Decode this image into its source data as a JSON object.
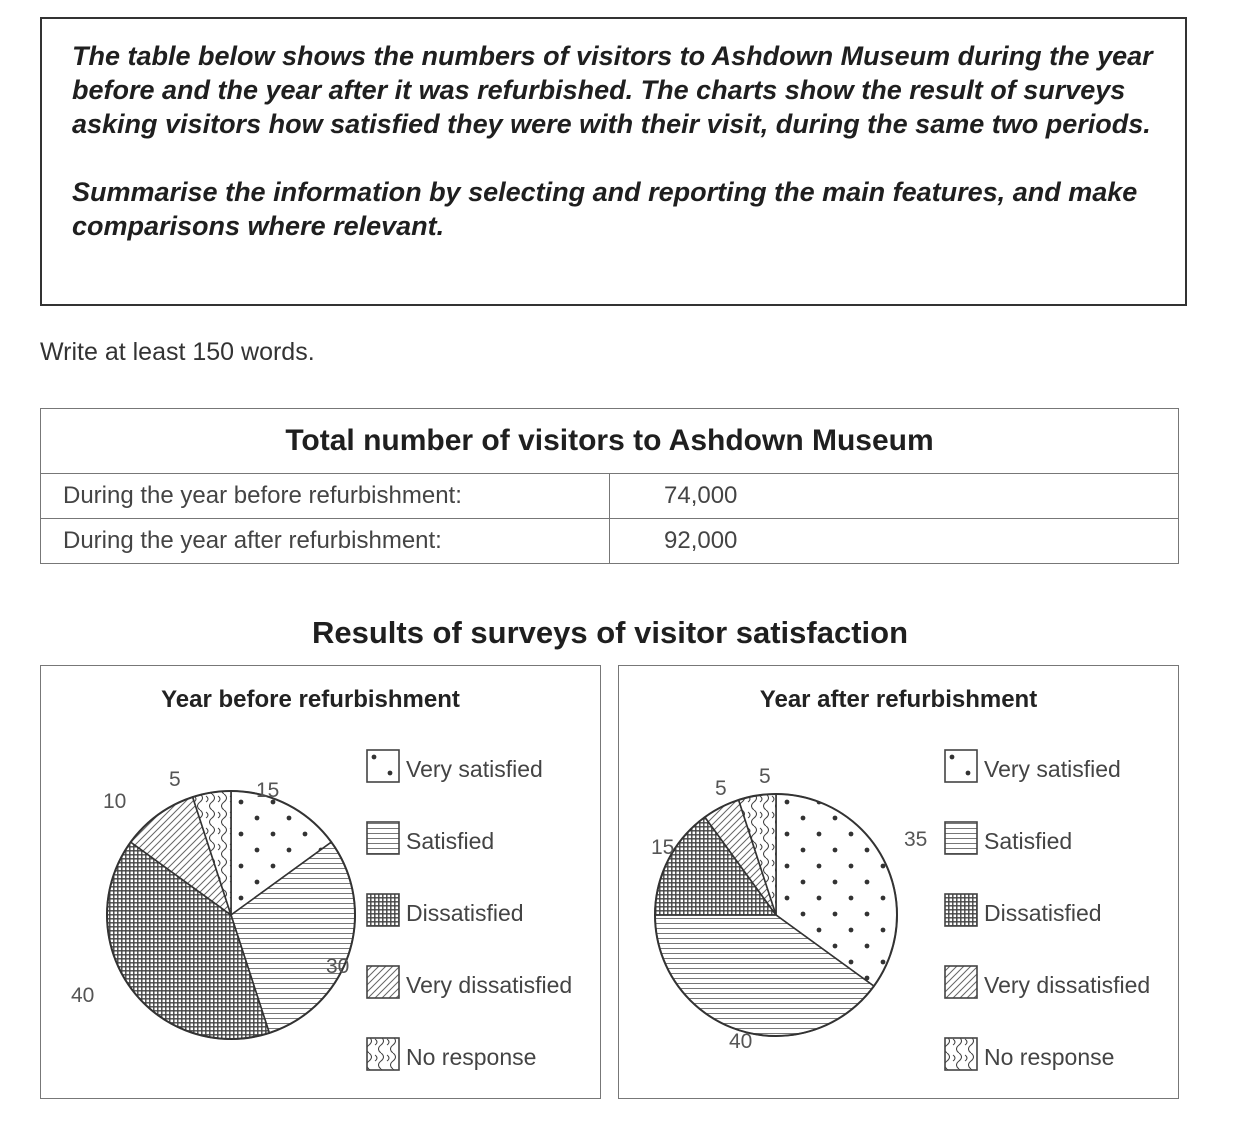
{
  "prompt": {
    "paragraph1": "The table below shows the numbers of visitors to Ashdown Museum during the year before and the year after it was refurbished. The charts show the result of surveys asking visitors how satisfied they were with their visit, during the same two periods.",
    "paragraph2": "Summarise the information by selecting and reporting the main features, and make comparisons where relevant."
  },
  "instruction": "Write at least 150 words.",
  "visitors_table": {
    "title": "Total number of visitors to Ashdown Museum",
    "rows": [
      {
        "label": "During the year before refurbishment:",
        "value": "74,000"
      },
      {
        "label": "During the year after refurbishment:",
        "value": "92,000"
      }
    ]
  },
  "charts_title": "Results of surveys of visitor satisfaction",
  "legend": [
    {
      "label": "Very satisfied",
      "pattern": "dots"
    },
    {
      "label": "Satisfied",
      "pattern": "hlines"
    },
    {
      "label": "Dissatisfied",
      "pattern": "grid"
    },
    {
      "label": "Very dissatisfied",
      "pattern": "diag"
    },
    {
      "label": "No response",
      "pattern": "squiggle"
    }
  ],
  "chart_data": [
    {
      "type": "pie",
      "title": "Year before refurbishment",
      "categories": [
        "Very satisfied",
        "Satisfied",
        "Dissatisfied",
        "Very dissatisfied",
        "No response"
      ],
      "values": [
        15,
        30,
        40,
        10,
        5
      ],
      "labels": [
        "15",
        "30",
        "40",
        "10",
        "5"
      ],
      "legend": "right"
    },
    {
      "type": "pie",
      "title": "Year after refurbishment",
      "categories": [
        "Very satisfied",
        "Satisfied",
        "Dissatisfied",
        "Very dissatisfied",
        "No response"
      ],
      "values": [
        35,
        40,
        15,
        5,
        5
      ],
      "labels": [
        "35",
        "40",
        "15",
        "5",
        "5"
      ],
      "legend": "right"
    }
  ]
}
